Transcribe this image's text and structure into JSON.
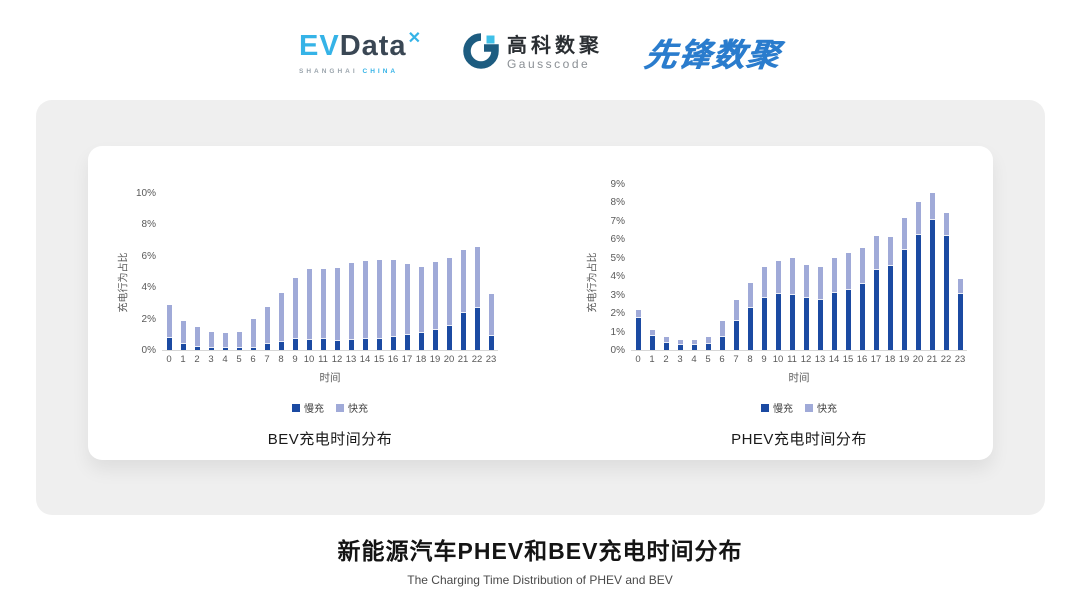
{
  "header": {
    "evdata_logo": {
      "part_ev": "EV",
      "part_data": "Data",
      "spark": "✕",
      "sub_left": "SHANGHAI",
      "sub_right": "CHINA"
    },
    "gausscode_logo": {
      "cn": "高科数聚",
      "en": "Gausscode"
    },
    "pioneer_logo": {
      "text": "先锋数聚"
    }
  },
  "colors": {
    "slow_charge": "#1b4aa2",
    "fast_charge": "#a0aad8",
    "panel_gray": "#efefef",
    "accent_lightblue": "#35b3e7",
    "pioneer_blue": "#2a7ccd"
  },
  "chart_data": [
    {
      "type": "bar",
      "stacked": true,
      "grid": false,
      "legend_position": "bottom",
      "title": "BEV充电时间分布",
      "xlabel": "时间",
      "ylabel": "充电行为占比",
      "ylim": [
        0,
        10
      ],
      "yticks": [
        {
          "value": 0,
          "label": "0%"
        },
        {
          "value": 2,
          "label": "2%"
        },
        {
          "value": 4,
          "label": "4%"
        },
        {
          "value": 6,
          "label": "6%"
        },
        {
          "value": 8,
          "label": "8%"
        },
        {
          "value": 10,
          "label": "10%"
        }
      ],
      "categories": [
        "0",
        "1",
        "2",
        "3",
        "4",
        "5",
        "6",
        "7",
        "8",
        "9",
        "10",
        "11",
        "12",
        "13",
        "14",
        "15",
        "16",
        "17",
        "18",
        "19",
        "20",
        "21",
        "22",
        "23"
      ],
      "series": [
        {
          "name": "慢充",
          "color": "#1b4aa2",
          "values": [
            0.75,
            0.4,
            0.2,
            0.15,
            0.1,
            0.1,
            0.15,
            0.4,
            0.5,
            0.7,
            0.65,
            0.7,
            0.6,
            0.65,
            0.7,
            0.7,
            0.8,
            0.95,
            1.1,
            1.3,
            1.55,
            2.35,
            2.7,
            0.9
          ]
        },
        {
          "name": "快充",
          "color": "#a0aad8",
          "values": [
            2.1,
            1.45,
            1.3,
            1.0,
            1.0,
            1.05,
            1.85,
            2.35,
            3.1,
            3.9,
            4.5,
            4.45,
            4.6,
            4.9,
            5.0,
            5.05,
            4.95,
            4.55,
            4.2,
            4.3,
            4.3,
            4.0,
            3.85,
            2.65
          ]
        }
      ]
    },
    {
      "type": "bar",
      "stacked": true,
      "grid": false,
      "legend_position": "bottom",
      "title": "PHEV充电时间分布",
      "xlabel": "时间",
      "ylabel": "充电行为占比",
      "ylim": [
        0,
        9
      ],
      "yticks": [
        {
          "value": 0,
          "label": "0%"
        },
        {
          "value": 1,
          "label": "1%"
        },
        {
          "value": 2,
          "label": "2%"
        },
        {
          "value": 3,
          "label": "3%"
        },
        {
          "value": 4,
          "label": "4%"
        },
        {
          "value": 5,
          "label": "5%"
        },
        {
          "value": 6,
          "label": "6%"
        },
        {
          "value": 7,
          "label": "7%"
        },
        {
          "value": 8,
          "label": "8%"
        },
        {
          "value": 9,
          "label": "9%"
        }
      ],
      "categories": [
        "0",
        "1",
        "2",
        "3",
        "4",
        "5",
        "6",
        "7",
        "8",
        "9",
        "10",
        "11",
        "12",
        "13",
        "14",
        "15",
        "16",
        "17",
        "18",
        "19",
        "20",
        "21",
        "22",
        "23"
      ],
      "series": [
        {
          "name": "慢充",
          "color": "#1b4aa2",
          "values": [
            1.75,
            0.75,
            0.4,
            0.25,
            0.25,
            0.35,
            0.7,
            1.6,
            2.3,
            2.8,
            3.05,
            3.0,
            2.8,
            2.7,
            3.1,
            3.25,
            3.6,
            4.35,
            4.55,
            5.4,
            6.25,
            7.05,
            6.2,
            3.05
          ]
        },
        {
          "name": "快充",
          "color": "#a0aad8",
          "values": [
            0.4,
            0.35,
            0.3,
            0.3,
            0.3,
            0.35,
            0.9,
            1.1,
            1.35,
            1.7,
            1.75,
            2.0,
            1.8,
            1.8,
            1.9,
            2.0,
            1.95,
            1.85,
            1.6,
            1.75,
            1.75,
            1.45,
            1.25,
            0.8
          ]
        }
      ]
    }
  ],
  "footer": {
    "title": "新能源汽车PHEV和BEV充电时间分布",
    "subtitle": "The Charging Time Distribution of PHEV and BEV"
  }
}
